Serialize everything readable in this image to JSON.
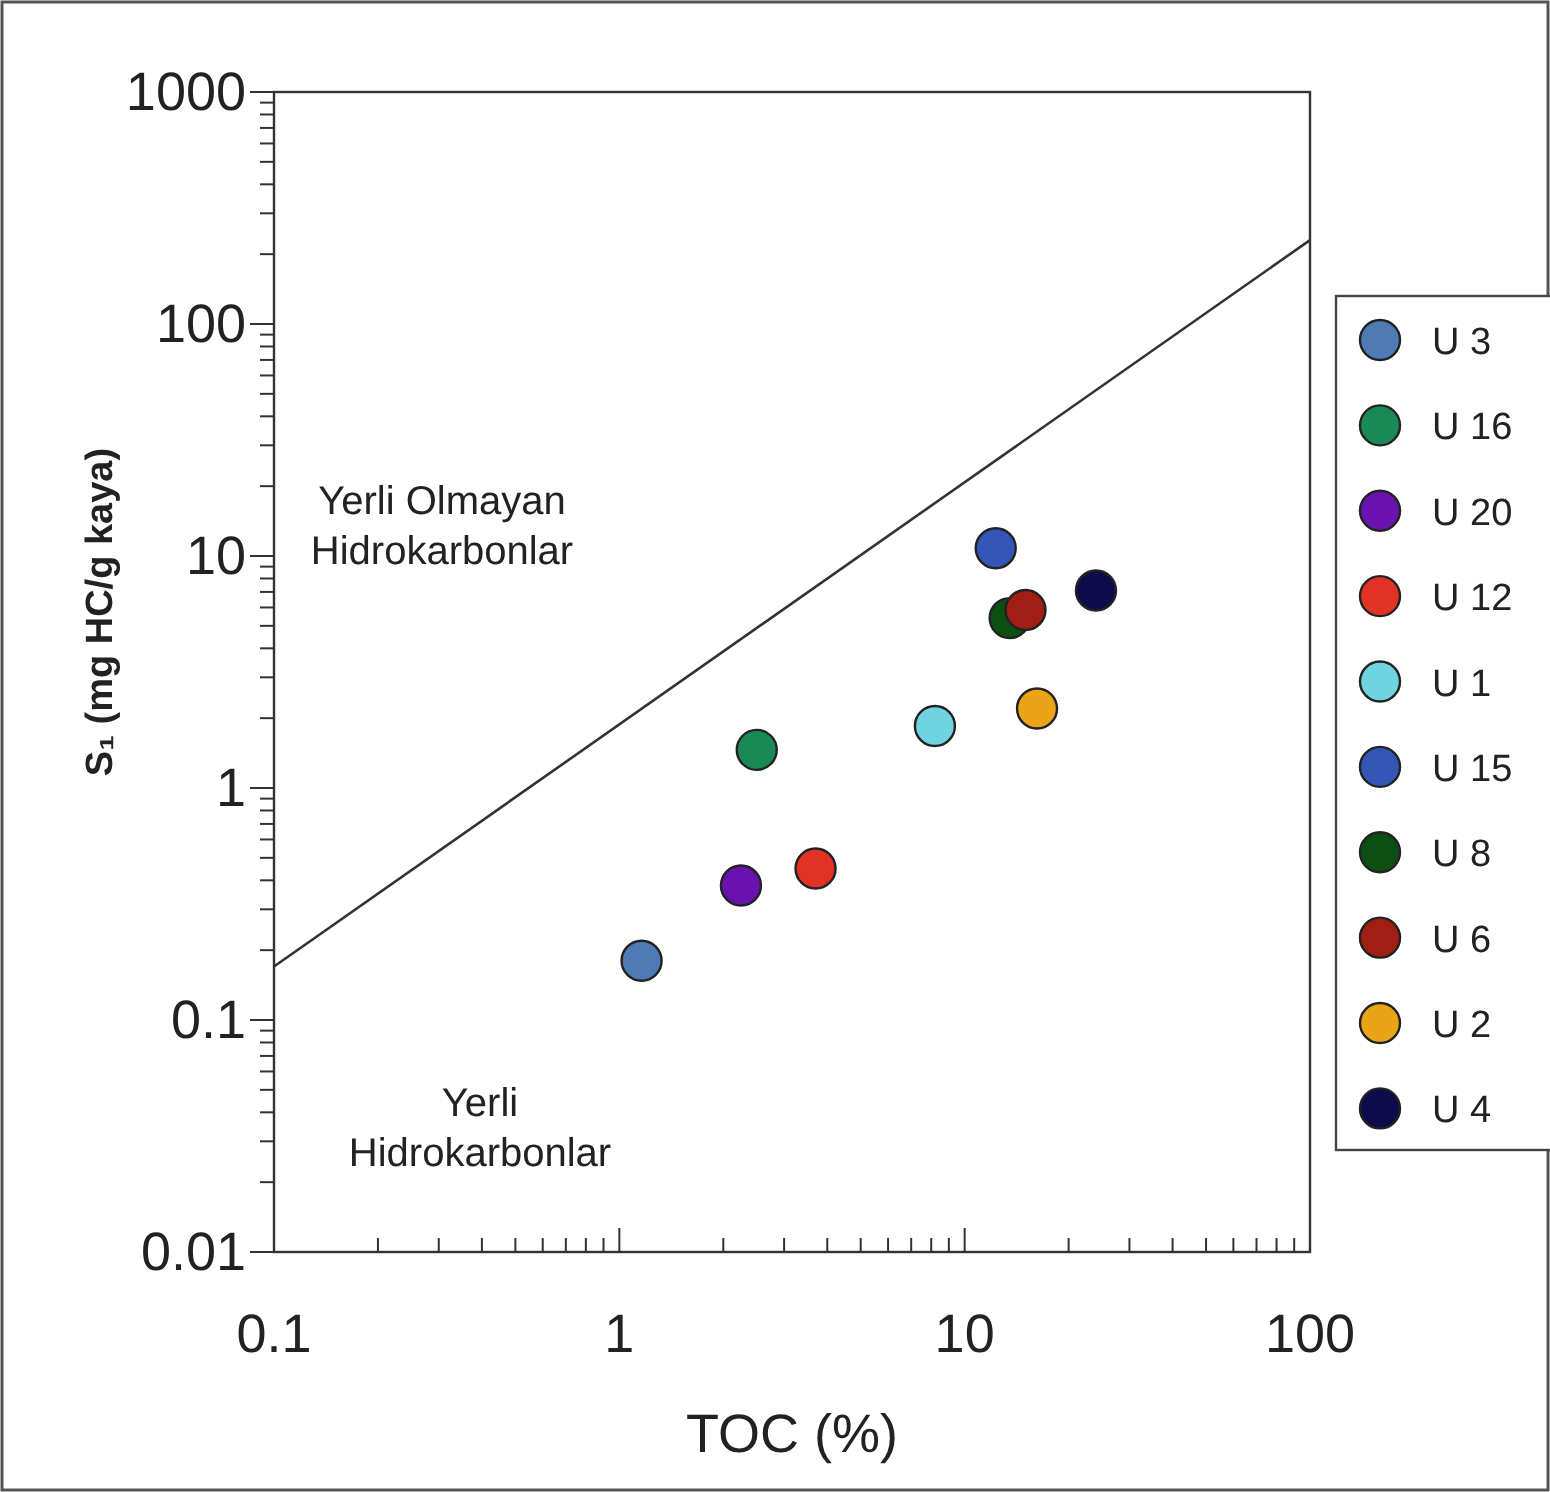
{
  "chart_data": {
    "type": "scatter",
    "xlabel": "TOC (%)",
    "ylabel": "S₁ (mg HC/g kaya)",
    "log": "xy",
    "marker": "circle",
    "legend": "right",
    "grid": false,
    "xlim": [
      0.1,
      100
    ],
    "ylim": [
      0.01,
      1000
    ],
    "xticks": [
      0.1,
      {
        "value": 0.2,
        "label": null
      },
      {
        "value": 0.3,
        "label": null
      },
      {
        "value": 0.4,
        "label": null
      },
      {
        "value": 0.5,
        "label": null
      },
      {
        "value": 0.6,
        "label": null
      },
      {
        "value": 0.7,
        "label": null
      },
      {
        "value": 0.8,
        "label": null
      },
      {
        "value": 0.9,
        "label": null
      },
      1,
      {
        "value": 2,
        "label": null
      },
      {
        "value": 3,
        "label": null
      },
      {
        "value": 4,
        "label": null
      },
      {
        "value": 5,
        "label": null
      },
      {
        "value": 6,
        "label": null
      },
      {
        "value": 7,
        "label": null
      },
      {
        "value": 8,
        "label": null
      },
      {
        "value": 9,
        "label": null
      },
      10,
      {
        "value": 20,
        "label": null
      },
      {
        "value": 30,
        "label": null
      },
      {
        "value": 40,
        "label": null
      },
      {
        "value": 50,
        "label": null
      },
      {
        "value": 60,
        "label": null
      },
      {
        "value": 70,
        "label": null
      },
      {
        "value": 80,
        "label": null
      },
      {
        "value": 90,
        "label": null
      },
      100
    ],
    "yticks": [
      0.01,
      {
        "value": 0.02,
        "label": null
      },
      {
        "value": 0.03,
        "label": null
      },
      {
        "value": 0.04,
        "label": null
      },
      {
        "value": 0.05,
        "label": null
      },
      {
        "value": 0.06,
        "label": null
      },
      {
        "value": 0.07,
        "label": null
      },
      {
        "value": 0.08,
        "label": null
      },
      {
        "value": 0.09,
        "label": null
      },
      0.1,
      {
        "value": 0.2,
        "label": null
      },
      {
        "value": 0.3,
        "label": null
      },
      {
        "value": 0.4,
        "label": null
      },
      {
        "value": 0.5,
        "label": null
      },
      {
        "value": 0.6,
        "label": null
      },
      {
        "value": 0.7,
        "label": null
      },
      {
        "value": 0.8,
        "label": null
      },
      {
        "value": 0.9,
        "label": null
      },
      1,
      {
        "value": 2,
        "label": null
      },
      {
        "value": 3,
        "label": null
      },
      {
        "value": 4,
        "label": null
      },
      {
        "value": 5,
        "label": null
      },
      {
        "value": 6,
        "label": null
      },
      {
        "value": 7,
        "label": null
      },
      {
        "value": 8,
        "label": null
      },
      {
        "value": 9,
        "label": null
      },
      10,
      {
        "value": 20,
        "label": null
      },
      {
        "value": 30,
        "label": null
      },
      {
        "value": 40,
        "label": null
      },
      {
        "value": 50,
        "label": null
      },
      {
        "value": 60,
        "label": null
      },
      {
        "value": 70,
        "label": null
      },
      {
        "value": 80,
        "label": null
      },
      {
        "value": 90,
        "label": null
      },
      100,
      {
        "value": 200,
        "label": null
      },
      {
        "value": 300,
        "label": null
      },
      {
        "value": 400,
        "label": null
      },
      {
        "value": 500,
        "label": null
      },
      {
        "value": 600,
        "label": null
      },
      {
        "value": 700,
        "label": null
      },
      {
        "value": 800,
        "label": null
      },
      {
        "value": 900,
        "label": null
      },
      1000
    ],
    "series": [
      {
        "type": "line",
        "color": "#333333",
        "x": [
          0.1,
          100
        ],
        "values": [
          0.17,
          230
        ],
        "marker": "none",
        "line_style": "solid"
      },
      {
        "name": "U 3",
        "color": "#4f7bb5",
        "x": [
          1.16
        ],
        "values": [
          0.18
        ]
      },
      {
        "name": "U 16",
        "color": "#1a8a55",
        "x": [
          2.5
        ],
        "values": [
          1.46
        ]
      },
      {
        "name": "U 20",
        "color": "#6a12b0",
        "x": [
          2.25
        ],
        "values": [
          0.38
        ]
      },
      {
        "name": "U 12",
        "color": "#e03325",
        "x": [
          3.7
        ],
        "values": [
          0.45
        ]
      },
      {
        "name": "U 1",
        "color": "#6fd3e0",
        "x": [
          8.2
        ],
        "values": [
          1.85
        ]
      },
      {
        "name": "U 15",
        "color": "#3355b5",
        "x": [
          12.3
        ],
        "values": [
          10.8
        ]
      },
      {
        "name": "U 8",
        "color": "#0b4f12",
        "x": [
          13.5
        ],
        "values": [
          5.4
        ]
      },
      {
        "name": "U 6",
        "color": "#a01e14",
        "x": [
          15
        ],
        "values": [
          5.85
        ]
      },
      {
        "name": "U 2",
        "color": "#eaa516",
        "x": [
          16.2
        ],
        "values": [
          2.2
        ]
      },
      {
        "name": "U 4",
        "color": "#0e0b4a",
        "x": [
          24
        ],
        "values": [
          7.1
        ]
      }
    ],
    "annotations": [
      "Yerli Olmayan\nHidrokarbonlar",
      "Yerli\nHidrokarbonlar"
    ]
  }
}
